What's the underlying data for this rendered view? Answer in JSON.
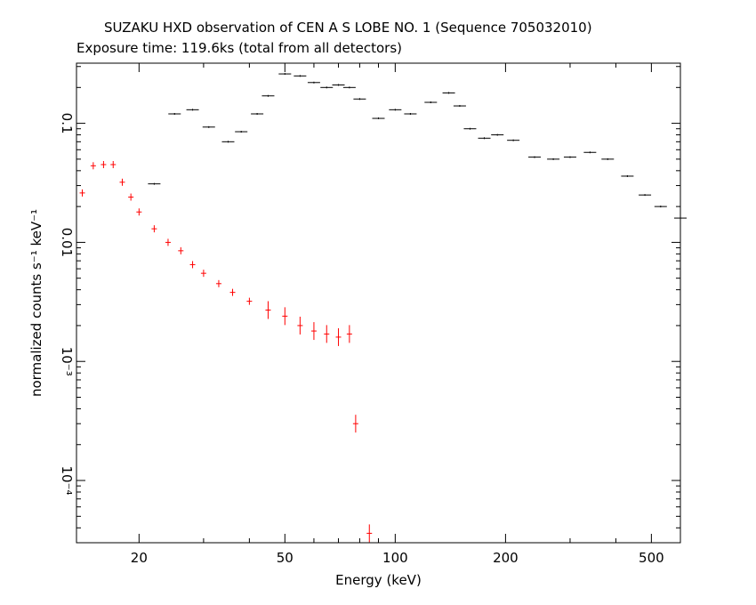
{
  "title": "SUZAKU HXD observation of CEN A S LOBE NO. 1 (Sequence 705032010)",
  "subtitle": "Exposure time: 119.6ks (total from all detectors)",
  "chart_data": {
    "type": "scatter",
    "title": "SUZAKU HXD observation of CEN A S LOBE NO. 1 (Sequence 705032010)",
    "subtitle": "Exposure time: 119.6ks (total from all detectors)",
    "xlabel": "Energy (keV)",
    "ylabel": "normalized counts s⁻¹ keV⁻¹",
    "xscale": "log",
    "yscale": "log",
    "xlim": [
      13.5,
      600
    ],
    "ylim": [
      3e-05,
      0.32
    ],
    "x_ticks": [
      20,
      50,
      100,
      200,
      500
    ],
    "x_tick_labels": [
      "20",
      "50",
      "100",
      "200",
      "500"
    ],
    "y_ticks": [
      0.0001,
      0.001,
      0.01,
      0.1
    ],
    "y_tick_labels": [
      "10⁻⁴",
      "10⁻³",
      "0.01",
      "0.1"
    ],
    "grid": false,
    "series": [
      {
        "color": "#ff0000",
        "x": [
          14,
          15,
          16,
          17,
          18,
          19,
          20,
          22,
          24,
          26,
          28,
          30,
          33,
          36,
          40,
          45,
          50,
          55,
          60,
          65,
          70,
          75,
          78,
          85
        ],
        "y": [
          0.026,
          0.044,
          0.045,
          0.045,
          0.032,
          0.024,
          0.018,
          0.013,
          0.01,
          0.0085,
          0.0065,
          0.0055,
          0.0045,
          0.0038,
          0.0032,
          0.0027,
          0.0024,
          0.002,
          0.0018,
          0.0017,
          0.0016,
          0.0017,
          0.0003,
          3.6e-05
        ]
      },
      {
        "color": "#000000",
        "x": [
          22,
          25,
          28,
          31,
          35,
          38,
          42,
          45,
          50,
          55,
          60,
          65,
          70,
          75,
          80,
          90,
          100,
          110,
          125,
          140,
          150,
          160,
          175,
          190,
          210,
          240,
          270,
          300,
          340,
          380,
          430,
          480,
          530,
          600
        ],
        "y": [
          0.031,
          0.12,
          0.13,
          0.093,
          0.07,
          0.085,
          0.12,
          0.17,
          0.26,
          0.25,
          0.22,
          0.2,
          0.21,
          0.2,
          0.16,
          0.11,
          0.13,
          0.12,
          0.15,
          0.18,
          0.14,
          0.09,
          0.075,
          0.08,
          0.072,
          0.052,
          0.05,
          0.052,
          0.057,
          0.05,
          0.036,
          0.025,
          0.02,
          0.016
        ]
      }
    ]
  }
}
